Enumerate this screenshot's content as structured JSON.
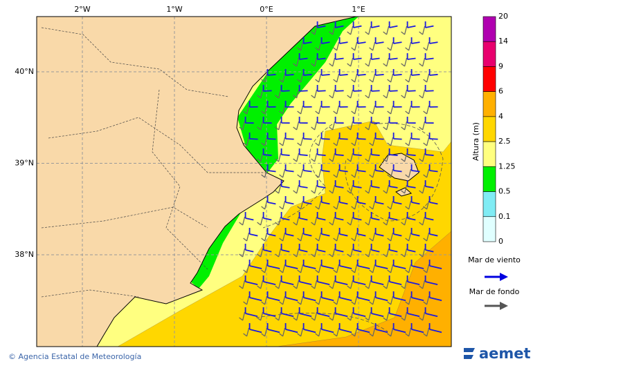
{
  "map": {
    "x_labels": [
      "2°W",
      "1°W",
      "0°E",
      "1°E"
    ],
    "y_labels": [
      "40°N",
      "39°N",
      "38°N"
    ]
  },
  "colorbar": {
    "title": "Altura (m)",
    "levels": [
      "20",
      "14",
      "9",
      "6",
      "4",
      "2.5",
      "1.25",
      "0.5",
      "0.1",
      "0"
    ],
    "colors": [
      "#b000b0",
      "#e8006e",
      "#ff0000",
      "#ffb000",
      "#ffd700",
      "#ffff80",
      "#00f000",
      "#80ecf4",
      "#e0ffff"
    ]
  },
  "legend": {
    "wind_sea": "Mar de viento",
    "swell": "Mar de fondo"
  },
  "footer": {
    "credit": "© Agencia Estatal de Meteorología",
    "logo": "aemet"
  }
}
